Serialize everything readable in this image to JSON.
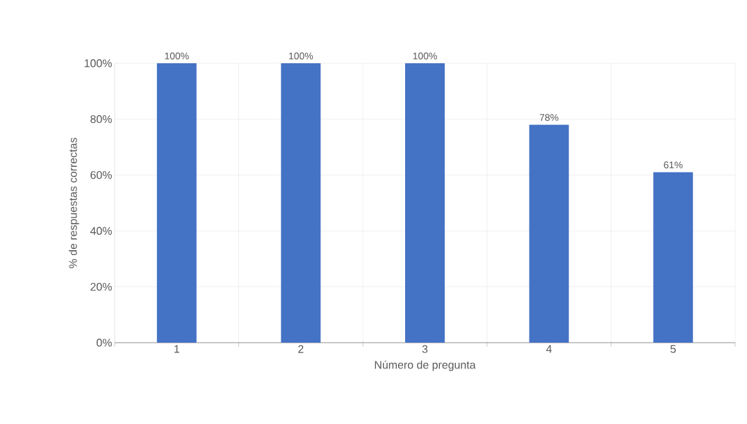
{
  "chart_data": {
    "type": "bar",
    "xlabel": "Número de pregunta",
    "ylabel": "% de respuestas correctas",
    "categories": [
      "1",
      "2",
      "3",
      "4",
      "5"
    ],
    "values": [
      100,
      100,
      100,
      78,
      61
    ],
    "value_labels": [
      "100%",
      "100%",
      "100%",
      "78%",
      "61%"
    ],
    "color": "#4472c4",
    "ylim": [
      0,
      100
    ],
    "yticks": [
      {
        "value": 0,
        "label": "0%"
      },
      {
        "value": 20,
        "label": "20%"
      },
      {
        "value": 40,
        "label": "40%"
      },
      {
        "value": 60,
        "label": "60%"
      },
      {
        "value": 80,
        "label": "80%"
      },
      {
        "value": 100,
        "label": "100%"
      }
    ],
    "grid": true
  }
}
